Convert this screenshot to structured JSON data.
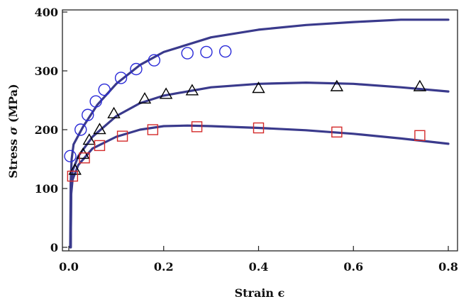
{
  "chart_data": {
    "type": "scatter",
    "title": "",
    "xlabel": "Strain ϵ",
    "ylabel_parts": [
      "Stress ",
      "σ",
      " (MPa)"
    ],
    "xlim": [
      0,
      0.8
    ],
    "ylim": [
      0,
      400
    ],
    "x_ticks": [
      0.0,
      0.2,
      0.4,
      0.6,
      0.8
    ],
    "x_tick_labels": [
      "0.0",
      "0.2",
      "0.4",
      "0.6",
      "0.8"
    ],
    "y_ticks": [
      0,
      100,
      200,
      300,
      400
    ],
    "y_tick_labels": [
      "0",
      "100",
      "200",
      "300",
      "400"
    ],
    "grid": false,
    "colors": {
      "fit": "#3a3a8c",
      "circle": "#2a2ad8",
      "triangle": "#000000",
      "square": "#d42a2a"
    },
    "series": [
      {
        "marker": "circle",
        "color": "#2a2ad8",
        "points": [
          [
            0.003,
            155
          ],
          [
            0.025,
            200
          ],
          [
            0.04,
            225
          ],
          [
            0.057,
            248
          ],
          [
            0.075,
            268
          ],
          [
            0.11,
            288
          ],
          [
            0.142,
            303
          ],
          [
            0.18,
            318
          ],
          [
            0.25,
            330
          ],
          [
            0.29,
            332
          ],
          [
            0.33,
            333
          ]
        ]
      },
      {
        "marker": "triangle",
        "color": "#000000",
        "points": [
          [
            0.013,
            131
          ],
          [
            0.03,
            158
          ],
          [
            0.043,
            182
          ],
          [
            0.065,
            200
          ],
          [
            0.095,
            227
          ],
          [
            0.16,
            252
          ],
          [
            0.205,
            260
          ],
          [
            0.26,
            266
          ],
          [
            0.4,
            270
          ],
          [
            0.565,
            273
          ],
          [
            0.74,
            273
          ]
        ]
      },
      {
        "marker": "square",
        "color": "#d42a2a",
        "points": [
          [
            0.008,
            121
          ],
          [
            0.033,
            152
          ],
          [
            0.065,
            173
          ],
          [
            0.113,
            189
          ],
          [
            0.177,
            200
          ],
          [
            0.27,
            205
          ],
          [
            0.4,
            203
          ],
          [
            0.565,
            196
          ],
          [
            0.74,
            190
          ]
        ]
      }
    ],
    "fit_curves": [
      {
        "color": "#3a3a8c",
        "points": [
          [
            0.003,
            0
          ],
          [
            0.004,
            110
          ],
          [
            0.006,
            150
          ],
          [
            0.01,
            175
          ],
          [
            0.03,
            205
          ],
          [
            0.06,
            242
          ],
          [
            0.1,
            278
          ],
          [
            0.15,
            310
          ],
          [
            0.2,
            332
          ],
          [
            0.3,
            357
          ],
          [
            0.4,
            370
          ],
          [
            0.5,
            378
          ],
          [
            0.6,
            383
          ],
          [
            0.7,
            387
          ],
          [
            0.8,
            387
          ]
        ]
      },
      {
        "color": "#3a3a8c",
        "points": [
          [
            0.004,
            0
          ],
          [
            0.005,
            100
          ],
          [
            0.008,
            130
          ],
          [
            0.02,
            155
          ],
          [
            0.05,
            188
          ],
          [
            0.1,
            223
          ],
          [
            0.15,
            245
          ],
          [
            0.2,
            258
          ],
          [
            0.3,
            272
          ],
          [
            0.4,
            278
          ],
          [
            0.5,
            280
          ],
          [
            0.6,
            278
          ],
          [
            0.7,
            272
          ],
          [
            0.8,
            265
          ]
        ]
      },
      {
        "color": "#3a3a8c",
        "points": [
          [
            0.004,
            0
          ],
          [
            0.005,
            90
          ],
          [
            0.008,
            115
          ],
          [
            0.02,
            140
          ],
          [
            0.05,
            168
          ],
          [
            0.1,
            188
          ],
          [
            0.15,
            200
          ],
          [
            0.2,
            206
          ],
          [
            0.25,
            207
          ],
          [
            0.3,
            206
          ],
          [
            0.4,
            203
          ],
          [
            0.5,
            199
          ],
          [
            0.6,
            193
          ],
          [
            0.7,
            185
          ],
          [
            0.8,
            176
          ]
        ]
      }
    ]
  }
}
